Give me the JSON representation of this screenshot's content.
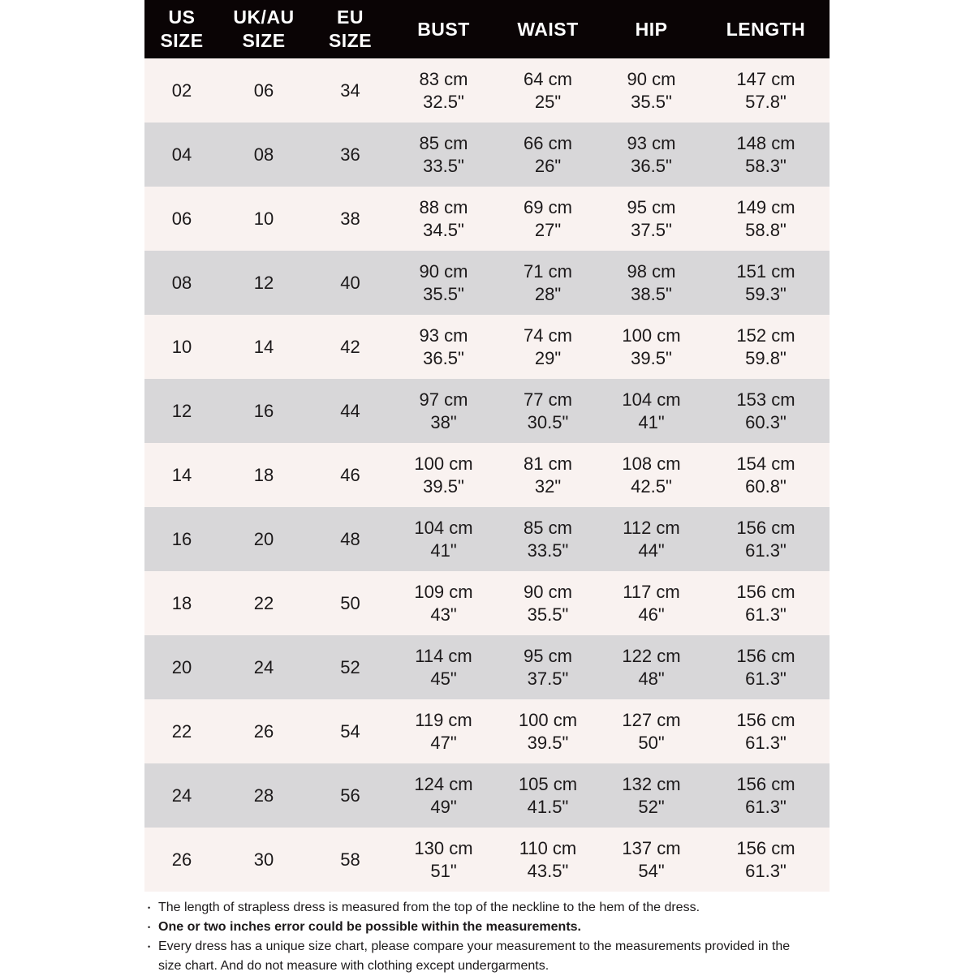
{
  "colors": {
    "header_bg": "#0a0405",
    "header_text": "#ffffff",
    "row_light": "#f9f2f0",
    "row_dark": "#d8d7d9",
    "page_bg": "#ffffff",
    "text_color": "#1c191a"
  },
  "table": {
    "headers": [
      {
        "id": "us-size",
        "lines": [
          "US",
          "SIZE"
        ]
      },
      {
        "id": "uk-au-size",
        "lines": [
          "UK/AU",
          "SIZE"
        ]
      },
      {
        "id": "eu-size",
        "lines": [
          "EU",
          "SIZE"
        ]
      },
      {
        "id": "bust",
        "lines": [
          "BUST"
        ]
      },
      {
        "id": "waist",
        "lines": [
          "WAIST"
        ]
      },
      {
        "id": "hip",
        "lines": [
          "HIP"
        ]
      },
      {
        "id": "length",
        "lines": [
          "LENGTH"
        ]
      }
    ],
    "rows": [
      {
        "us_size": "02",
        "uk_au_size": "06",
        "eu_size": "34",
        "bust": [
          "83 cm",
          "32.5\""
        ],
        "waist": [
          "64 cm",
          "25\""
        ],
        "hip": [
          "90 cm",
          "35.5\""
        ],
        "length": [
          "147 cm",
          "57.8\""
        ]
      },
      {
        "us_size": "04",
        "uk_au_size": "08",
        "eu_size": "36",
        "bust": [
          "85 cm",
          "33.5\""
        ],
        "waist": [
          "66 cm",
          "26\""
        ],
        "hip": [
          "93 cm",
          "36.5\""
        ],
        "length": [
          "148 cm",
          "58.3\""
        ]
      },
      {
        "us_size": "06",
        "uk_au_size": "10",
        "eu_size": "38",
        "bust": [
          "88 cm",
          "34.5\""
        ],
        "waist": [
          "69 cm",
          "27\""
        ],
        "hip": [
          "95 cm",
          "37.5\""
        ],
        "length": [
          "149 cm",
          "58.8\""
        ]
      },
      {
        "us_size": "08",
        "uk_au_size": "12",
        "eu_size": "40",
        "bust": [
          "90 cm",
          "35.5\""
        ],
        "waist": [
          "71 cm",
          "28\""
        ],
        "hip": [
          "98 cm",
          "38.5\""
        ],
        "length": [
          "151 cm",
          "59.3\""
        ]
      },
      {
        "us_size": "10",
        "uk_au_size": "14",
        "eu_size": "42",
        "bust": [
          "93 cm",
          "36.5\""
        ],
        "waist": [
          "74 cm",
          "29\""
        ],
        "hip": [
          "100 cm",
          "39.5\""
        ],
        "length": [
          "152 cm",
          "59.8\""
        ]
      },
      {
        "us_size": "12",
        "uk_au_size": "16",
        "eu_size": "44",
        "bust": [
          "97 cm",
          "38\""
        ],
        "waist": [
          "77 cm",
          "30.5\""
        ],
        "hip": [
          "104 cm",
          "41\""
        ],
        "length": [
          "153 cm",
          "60.3\""
        ]
      },
      {
        "us_size": "14",
        "uk_au_size": "18",
        "eu_size": "46",
        "bust": [
          "100 cm",
          "39.5\""
        ],
        "waist": [
          "81 cm",
          "32\""
        ],
        "hip": [
          "108 cm",
          "42.5\""
        ],
        "length": [
          "154 cm",
          "60.8\""
        ]
      },
      {
        "us_size": "16",
        "uk_au_size": "20",
        "eu_size": "48",
        "bust": [
          "104 cm",
          "41\""
        ],
        "waist": [
          "85 cm",
          "33.5\""
        ],
        "hip": [
          "112 cm",
          "44\""
        ],
        "length": [
          "156 cm",
          "61.3\""
        ]
      },
      {
        "us_size": "18",
        "uk_au_size": "22",
        "eu_size": "50",
        "bust": [
          "109 cm",
          "43\""
        ],
        "waist": [
          "90 cm",
          "35.5\""
        ],
        "hip": [
          "117 cm",
          "46\""
        ],
        "length": [
          "156 cm",
          "61.3\""
        ]
      },
      {
        "us_size": "20",
        "uk_au_size": "24",
        "eu_size": "52",
        "bust": [
          "114 cm",
          "45\""
        ],
        "waist": [
          "95 cm",
          "37.5\""
        ],
        "hip": [
          "122 cm",
          "48\""
        ],
        "length": [
          "156 cm",
          "61.3\""
        ]
      },
      {
        "us_size": "22",
        "uk_au_size": "26",
        "eu_size": "54",
        "bust": [
          "119 cm",
          "47\""
        ],
        "waist": [
          "100 cm",
          "39.5\""
        ],
        "hip": [
          "127 cm",
          "50\""
        ],
        "length": [
          "156 cm",
          "61.3\""
        ]
      },
      {
        "us_size": "24",
        "uk_au_size": "28",
        "eu_size": "56",
        "bust": [
          "124 cm",
          "49\""
        ],
        "waist": [
          "105 cm",
          "41.5\""
        ],
        "hip": [
          "132 cm",
          "52\""
        ],
        "length": [
          "156 cm",
          "61.3\""
        ]
      },
      {
        "us_size": "26",
        "uk_au_size": "30",
        "eu_size": "58",
        "bust": [
          "130 cm",
          "51\""
        ],
        "waist": [
          "110 cm",
          "43.5\""
        ],
        "hip": [
          "137 cm",
          "54\""
        ],
        "length": [
          "156 cm",
          "61.3\""
        ]
      }
    ]
  },
  "notes": {
    "bullet": "•",
    "items": [
      {
        "text": "The length of strapless dress is measured from the top of the neckline to the hem of the dress.",
        "bold": false
      },
      {
        "text": "One or two inches error could be possible within the measurements.",
        "bold": true
      },
      {
        "text": "Every dress has a unique size chart, please compare your measurement to the measurements provided in the size chart. And do not measure with clothing except undergarments.",
        "bold": false
      }
    ]
  }
}
